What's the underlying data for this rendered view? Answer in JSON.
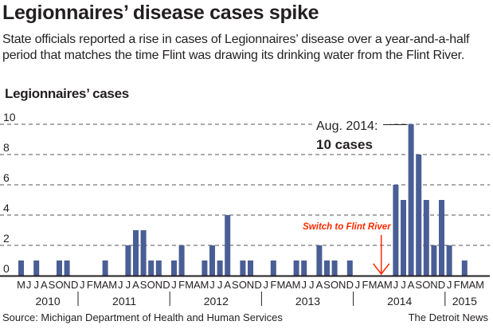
{
  "title": "Legionnaires’ disease cases spike",
  "subtitle": "State officials reported a rise in cases of Legionnaires’ disease over a year-and-a-half period that matches the time Flint was drawing its drinking water from the Flint River.",
  "source": "Source: Michigan Department of Health and Human Services",
  "credit": "The Detroit News",
  "colors": {
    "bar": "#4a5e96",
    "annotation": "#ff2a00",
    "grid": "#555555"
  },
  "chart_data": {
    "type": "bar",
    "ylabel": "Legionnaires’ cases",
    "ylim": [
      0,
      10
    ],
    "yticks": [
      "0",
      "2",
      "4",
      "6",
      "8",
      "10"
    ],
    "start": "May 2010",
    "end": "May 2015",
    "month_letters": [
      "M",
      "J",
      "J",
      "A",
      "S",
      "O",
      "N",
      "D",
      "J",
      "F",
      "M",
      "A",
      "M",
      "J",
      "J",
      "A",
      "S",
      "O",
      "N",
      "D",
      "J",
      "F",
      "M",
      "A",
      "M",
      "J",
      "J",
      "A",
      "S",
      "O",
      "N",
      "D",
      "J",
      "F",
      "M",
      "A",
      "M",
      "J",
      "J",
      "A",
      "S",
      "O",
      "N",
      "D",
      "J",
      "F",
      "M",
      "A",
      "M",
      "J",
      "J",
      "A",
      "S",
      "O",
      "N",
      "D",
      "J",
      "F",
      "M",
      "A",
      "M"
    ],
    "values": [
      1,
      0,
      1,
      0,
      0,
      1,
      1,
      0,
      0,
      0,
      0,
      1,
      0,
      0,
      2,
      3,
      3,
      1,
      1,
      0,
      1,
      2,
      0,
      0,
      1,
      2,
      1,
      4,
      0,
      1,
      1,
      0,
      0,
      1,
      0,
      0,
      1,
      1,
      0,
      2,
      1,
      1,
      0,
      1,
      0,
      0,
      0,
      0,
      0,
      6,
      5,
      10,
      8,
      5,
      2,
      5,
      2,
      0,
      1,
      0,
      0
    ],
    "years": [
      {
        "label": "2010",
        "months": 8
      },
      {
        "label": "2011",
        "months": 12
      },
      {
        "label": "2012",
        "months": 12
      },
      {
        "label": "2013",
        "months": 12
      },
      {
        "label": "2014",
        "months": 12
      },
      {
        "label": "2015",
        "months": 5
      }
    ],
    "annotations": [
      {
        "line1": "Aug. 2014:",
        "line2": "10 cases",
        "month_index": 51
      },
      {
        "text": "Switch to Flint River",
        "month_index": 47
      }
    ],
    "grid": true
  }
}
